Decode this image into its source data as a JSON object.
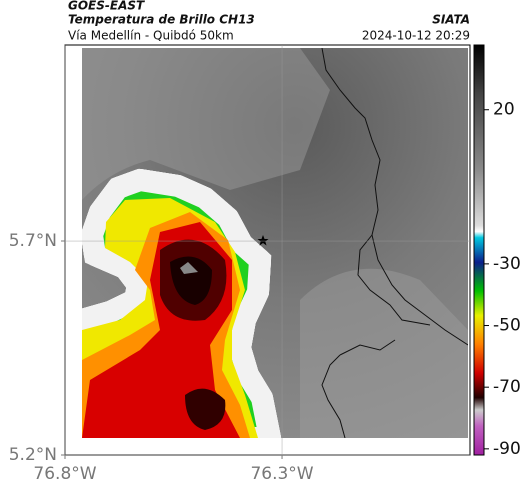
{
  "header": {
    "source": "GOES-EAST",
    "product": "Temperatura de Brillo CH13",
    "region": "Vía Medellín - Quibdó 50km",
    "agency": "SIATA",
    "timestamp": "2024-10-12 20:29"
  },
  "map": {
    "xlim": [
      -76.8,
      -75.867
    ],
    "ylim": [
      5.2,
      6.158
    ],
    "xticks": [
      {
        "value": -76.8,
        "label": "76.8°W"
      },
      {
        "value": -76.3,
        "label": "76.3°W"
      }
    ],
    "yticks": [
      {
        "value": 5.2,
        "label": "5.2°N"
      },
      {
        "value": 5.7,
        "label": "5.7°N"
      }
    ],
    "grid": true
  },
  "colorbar": {
    "lim": [
      -92,
      41
    ],
    "ticks": [
      20,
      -30,
      -50,
      -70,
      -90
    ]
  }
}
